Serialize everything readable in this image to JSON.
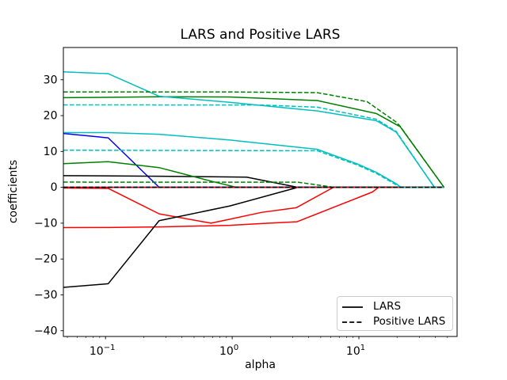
{
  "chart_data": {
    "type": "line",
    "title": "LARS and Positive LARS",
    "xlabel": "alpha",
    "ylabel": "coefficients",
    "x_scale": "log",
    "grid": false,
    "xlim": [
      0.0465,
      59.6
    ],
    "ylim": [
      -41.6,
      39.0
    ],
    "x_major_ticks": [
      {
        "value": 0.1,
        "base": "10",
        "exp": "−1"
      },
      {
        "value": 1,
        "base": "10",
        "exp": "0"
      },
      {
        "value": 10,
        "base": "10",
        "exp": "1"
      }
    ],
    "y_ticks": [
      {
        "value": 30,
        "label": "30"
      },
      {
        "value": 20,
        "label": "20"
      },
      {
        "value": 10,
        "label": "10"
      },
      {
        "value": 0,
        "label": "0"
      },
      {
        "value": -10,
        "label": "−10"
      },
      {
        "value": -20,
        "label": "−20"
      },
      {
        "value": -30,
        "label": "−30"
      },
      {
        "value": -40,
        "label": "−40"
      }
    ],
    "legend_position": "lower right",
    "legend": [
      {
        "label": "LARS",
        "style": "solid"
      },
      {
        "label": "Positive LARS",
        "style": "dashed"
      }
    ],
    "colors": {
      "blue": "#0000ff",
      "red": "#ff0000",
      "green": "#008000",
      "cyan": "#00bfbf",
      "black": "#000000"
    },
    "series": [
      {
        "name": "lars-coef-1",
        "group": "LARS",
        "color": "blue",
        "style": "solid",
        "points": [
          [
            0.0465,
            15.0
          ],
          [
            0.105,
            13.8
          ],
          [
            0.265,
            0
          ],
          [
            47,
            0
          ]
        ]
      },
      {
        "name": "lars-coef-2",
        "group": "LARS",
        "color": "red",
        "style": "solid",
        "points": [
          [
            0.0465,
            -0.2
          ],
          [
            0.105,
            -0.3
          ],
          [
            0.265,
            -7.4
          ],
          [
            0.68,
            -10.0
          ],
          [
            0.96,
            -8.9
          ],
          [
            1.7,
            -7.0
          ],
          [
            3.2,
            -5.7
          ],
          [
            6.3,
            0
          ],
          [
            47,
            0
          ]
        ]
      },
      {
        "name": "lars-coef-3",
        "group": "LARS",
        "color": "green",
        "style": "solid",
        "points": [
          [
            0.0465,
            25.0
          ],
          [
            0.265,
            25.25
          ],
          [
            0.96,
            25.2
          ],
          [
            4.7,
            24.2
          ],
          [
            13.7,
            20.6
          ],
          [
            21.2,
            16.9
          ],
          [
            47,
            0
          ]
        ]
      },
      {
        "name": "lars-coef-4",
        "group": "LARS",
        "color": "cyan",
        "style": "solid",
        "points": [
          [
            0.0465,
            32.2
          ],
          [
            0.105,
            31.7
          ],
          [
            0.265,
            25.4
          ],
          [
            0.96,
            23.7
          ],
          [
            4.7,
            21.3
          ],
          [
            13.7,
            18.6
          ],
          [
            19.7,
            15.4
          ],
          [
            39.5,
            0
          ],
          [
            47,
            0
          ]
        ]
      },
      {
        "name": "lars-coef-5",
        "group": "LARS",
        "color": "black",
        "style": "solid",
        "points": [
          [
            0.0465,
            3.25
          ],
          [
            0.265,
            3.1
          ],
          [
            1.3,
            2.85
          ],
          [
            3.3,
            0
          ],
          [
            47,
            0
          ]
        ]
      },
      {
        "name": "lars-coef-6",
        "group": "LARS",
        "color": "blue",
        "style": "solid",
        "points": [
          [
            0.0465,
            0
          ],
          [
            47,
            0
          ]
        ]
      },
      {
        "name": "lars-coef-7",
        "group": "LARS",
        "color": "red",
        "style": "solid",
        "points": [
          [
            0.0465,
            -11.25
          ],
          [
            0.105,
            -11.2
          ],
          [
            0.265,
            -11.05
          ],
          [
            0.96,
            -10.6
          ],
          [
            1.7,
            -10.1
          ],
          [
            3.25,
            -9.6
          ],
          [
            12.8,
            -1.3
          ],
          [
            14.3,
            0
          ],
          [
            47,
            0
          ]
        ]
      },
      {
        "name": "lars-coef-8",
        "group": "LARS",
        "color": "green",
        "style": "solid",
        "points": [
          [
            0.0465,
            6.6
          ],
          [
            0.105,
            7.15
          ],
          [
            0.265,
            5.5
          ],
          [
            0.72,
            1.5
          ],
          [
            1.05,
            0.1
          ],
          [
            1.3,
            0
          ],
          [
            47,
            0
          ]
        ]
      },
      {
        "name": "lars-coef-9",
        "group": "LARS",
        "color": "cyan",
        "style": "solid",
        "points": [
          [
            0.0465,
            15.25
          ],
          [
            0.105,
            15.25
          ],
          [
            0.265,
            14.8
          ],
          [
            0.96,
            13.2
          ],
          [
            4.7,
            10.6
          ],
          [
            9.6,
            6.6
          ],
          [
            13.7,
            4.2
          ],
          [
            19.7,
            1.0
          ],
          [
            21.5,
            0
          ],
          [
            47,
            0
          ]
        ]
      },
      {
        "name": "lars-coef-10",
        "group": "LARS",
        "color": "black",
        "style": "solid",
        "points": [
          [
            0.0465,
            -27.9
          ],
          [
            0.105,
            -26.9
          ],
          [
            0.265,
            -9.3
          ],
          [
            0.96,
            -5.2
          ],
          [
            3.3,
            0
          ],
          [
            47,
            0
          ]
        ]
      },
      {
        "name": "positive-lars-coef-1",
        "group": "Positive LARS",
        "color": "blue",
        "style": "dashed",
        "points": [
          [
            0.0465,
            0
          ],
          [
            47,
            0
          ]
        ]
      },
      {
        "name": "positive-lars-coef-2",
        "group": "Positive LARS",
        "color": "red",
        "style": "dashed",
        "dash_offset": 5,
        "points": [
          [
            0.0465,
            0
          ],
          [
            47,
            0
          ]
        ]
      },
      {
        "name": "positive-lars-coef-3",
        "group": "Positive LARS",
        "color": "green",
        "style": "dashed",
        "points": [
          [
            0.0465,
            26.6
          ],
          [
            0.96,
            26.6
          ],
          [
            4.7,
            26.4
          ],
          [
            11.6,
            23.9
          ],
          [
            19.7,
            18.2
          ],
          [
            21.2,
            17.0
          ],
          [
            47,
            0
          ]
        ]
      },
      {
        "name": "positive-lars-coef-4",
        "group": "Positive LARS",
        "color": "cyan",
        "style": "dashed",
        "points": [
          [
            0.0465,
            23.0
          ],
          [
            1.7,
            22.95
          ],
          [
            4.7,
            22.35
          ],
          [
            13.7,
            19.0
          ],
          [
            19.7,
            15.6
          ],
          [
            39.5,
            0
          ],
          [
            47,
            0
          ]
        ]
      },
      {
        "name": "positive-lars-coef-5",
        "group": "Positive LARS",
        "color": "black",
        "style": "dashed",
        "points": [
          [
            0.0465,
            0
          ],
          [
            47,
            0
          ]
        ]
      },
      {
        "name": "positive-lars-coef-6",
        "group": "Positive LARS",
        "color": "blue",
        "style": "dashed",
        "points": [
          [
            0.0465,
            0
          ],
          [
            47,
            0
          ]
        ]
      },
      {
        "name": "positive-lars-coef-7",
        "group": "Positive LARS",
        "color": "red",
        "style": "dashed",
        "dash_offset": 5,
        "points": [
          [
            0.0465,
            0
          ],
          [
            47,
            0
          ]
        ]
      },
      {
        "name": "positive-lars-coef-8",
        "group": "Positive LARS",
        "color": "green",
        "style": "dashed",
        "points": [
          [
            0.0465,
            1.45
          ],
          [
            3.3,
            1.42
          ],
          [
            6.4,
            0
          ],
          [
            47,
            0
          ]
        ]
      },
      {
        "name": "positive-lars-coef-9",
        "group": "Positive LARS",
        "color": "cyan",
        "style": "dashed",
        "points": [
          [
            0.0465,
            10.35
          ],
          [
            4.7,
            10.2
          ],
          [
            9.6,
            6.3
          ],
          [
            13.7,
            3.9
          ],
          [
            19.7,
            0.7
          ],
          [
            21.0,
            0
          ],
          [
            47,
            0
          ]
        ]
      },
      {
        "name": "positive-lars-coef-10",
        "group": "Positive LARS",
        "color": "black",
        "style": "dashed",
        "points": [
          [
            0.0465,
            0
          ],
          [
            47,
            0
          ]
        ]
      }
    ]
  }
}
